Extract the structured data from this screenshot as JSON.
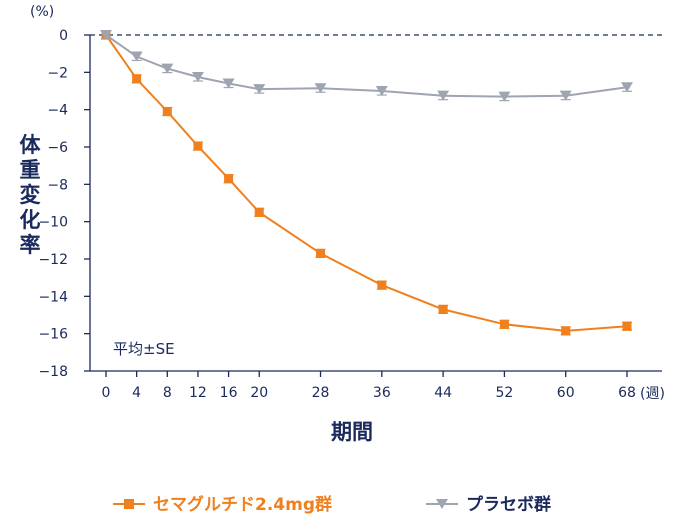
{
  "chart_data": {
    "type": "line",
    "y_unit": "(%)",
    "x_unit": "(週)",
    "xlabel": "期間",
    "ylabel": "体重変化率",
    "annotation": "平均±SE",
    "x": [
      0,
      4,
      8,
      12,
      16,
      20,
      28,
      36,
      44,
      52,
      60,
      68
    ],
    "x_ticks": [
      "0",
      "4",
      "8",
      "12",
      "16",
      "20",
      "28",
      "36",
      "44",
      "52",
      "60",
      "68"
    ],
    "y_ticks": [
      "0",
      "−2",
      "−4",
      "−6",
      "−8",
      "−10",
      "−12",
      "−14",
      "−16",
      "−18"
    ],
    "y_tick_values": [
      0,
      -2,
      -4,
      -6,
      -8,
      -10,
      -12,
      -14,
      -16,
      -18
    ],
    "ylim": [
      -18,
      0
    ],
    "grid": false,
    "reference_line": 0,
    "series": [
      {
        "name": "セマグルチド2.4mg群",
        "color": "#f07f1d",
        "marker": "square",
        "values": [
          0,
          -2.35,
          -4.1,
          -5.95,
          -7.7,
          -9.5,
          -11.7,
          -13.4,
          -14.7,
          -15.5,
          -15.85,
          -15.6
        ]
      },
      {
        "name": "プラセボ群",
        "color": "#9ea4b0",
        "marker": "triangle-down",
        "values": [
          0,
          -1.15,
          -1.8,
          -2.25,
          -2.6,
          -2.9,
          -2.85,
          -3.0,
          -3.25,
          -3.3,
          -3.25,
          -2.8
        ]
      }
    ]
  }
}
